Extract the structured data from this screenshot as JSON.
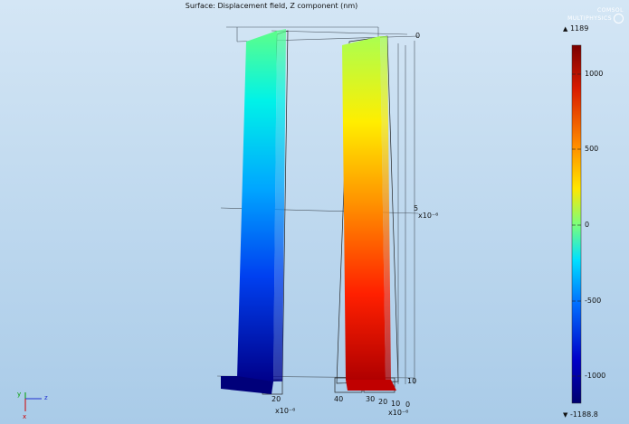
{
  "plot": {
    "title": "Surface: Displacement field, Z component (nm)",
    "logo_text": "COMSOL MULTIPHYSICS"
  },
  "colorbar": {
    "max_label": "1189",
    "min_label": "-1188.8",
    "ticks": [
      "1000",
      "500",
      "0",
      "-500",
      "-1000"
    ],
    "colors": [
      "#7a0000",
      "#d81a00",
      "#ff8c00",
      "#ffe600",
      "#7cff7a",
      "#00e0ff",
      "#0070ff",
      "#0000c8",
      "#00006e"
    ]
  },
  "axes": {
    "vertical_ticks": [
      "0",
      "5",
      "10"
    ],
    "vertical_multiplier": "x10⁻⁶",
    "depth_ticks_left": [
      "20"
    ],
    "depth_ticks_right": [
      "40",
      "30",
      "20",
      "10",
      "0"
    ],
    "depth_multiplier_left": "x10⁻⁶",
    "depth_multiplier_right": "x10⁻⁶"
  },
  "triad": {
    "y": "y",
    "z": "z",
    "x": "x"
  }
}
